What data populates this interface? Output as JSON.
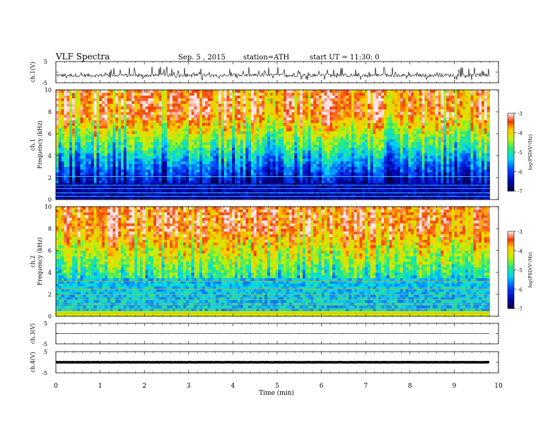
{
  "header": {
    "title": "VLF Spectra",
    "date": "Sep. 5 , 2015",
    "station": "station=ATH",
    "start": "start UT = 11:30: 0"
  },
  "chart_data": [
    {
      "type": "line",
      "id": "ch1-waveform",
      "ylabel": "ch.1(V)",
      "ylim": [
        -5,
        5
      ],
      "yticks": [
        "5",
        "-5"
      ],
      "xlim": [
        0,
        10
      ],
      "description_level": -1.5
    },
    {
      "type": "heatmap",
      "id": "ch1-spectrogram",
      "ylabel_top": "ch.1",
      "ylabel": "Frequency (kHz)",
      "ylim": [
        0,
        10
      ],
      "yticks": [
        "0",
        "2",
        "4",
        "6",
        "8",
        "10"
      ],
      "xlim": [
        0,
        10
      ],
      "data_extent_min": 9.8,
      "colorbar": {
        "label": "log(PSD(V²/Hz)",
        "min": -7,
        "max": -3,
        "ticks": [
          "-3",
          "-4",
          "-5",
          "-6",
          "-7"
        ]
      }
    },
    {
      "type": "heatmap",
      "id": "ch2-spectrogram",
      "ylabel_top": "ch.2",
      "ylabel": "Frequency (kHz)",
      "ylim": [
        0,
        10
      ],
      "yticks": [
        "0",
        "2",
        "4",
        "6",
        "8",
        "10"
      ],
      "xlim": [
        0,
        10
      ],
      "data_extent_min": 9.8,
      "colorbar": {
        "label": "log(PSD(V²/Hz)",
        "min": -7,
        "max": -3,
        "ticks": [
          "-3",
          "-4",
          "-5",
          "-6",
          "-7"
        ]
      }
    },
    {
      "type": "line",
      "id": "ch3-waveform",
      "ylabel": "ch.3(V)",
      "ylim": [
        -5,
        5
      ],
      "yticks": [
        "5",
        "-5"
      ],
      "xlim": [
        0,
        10
      ],
      "description_level": 0
    },
    {
      "type": "line",
      "id": "ch4-waveform",
      "ylabel": "ch.4(V)",
      "ylim": [
        -5,
        5
      ],
      "yticks": [
        "5",
        "-5"
      ],
      "xlim": [
        0,
        10
      ],
      "description_level": 0
    }
  ],
  "xaxis": {
    "label": "Time (min)",
    "ticks": [
      "0",
      "1",
      "2",
      "3",
      "4",
      "5",
      "6",
      "7",
      "8",
      "9",
      "10"
    ]
  }
}
